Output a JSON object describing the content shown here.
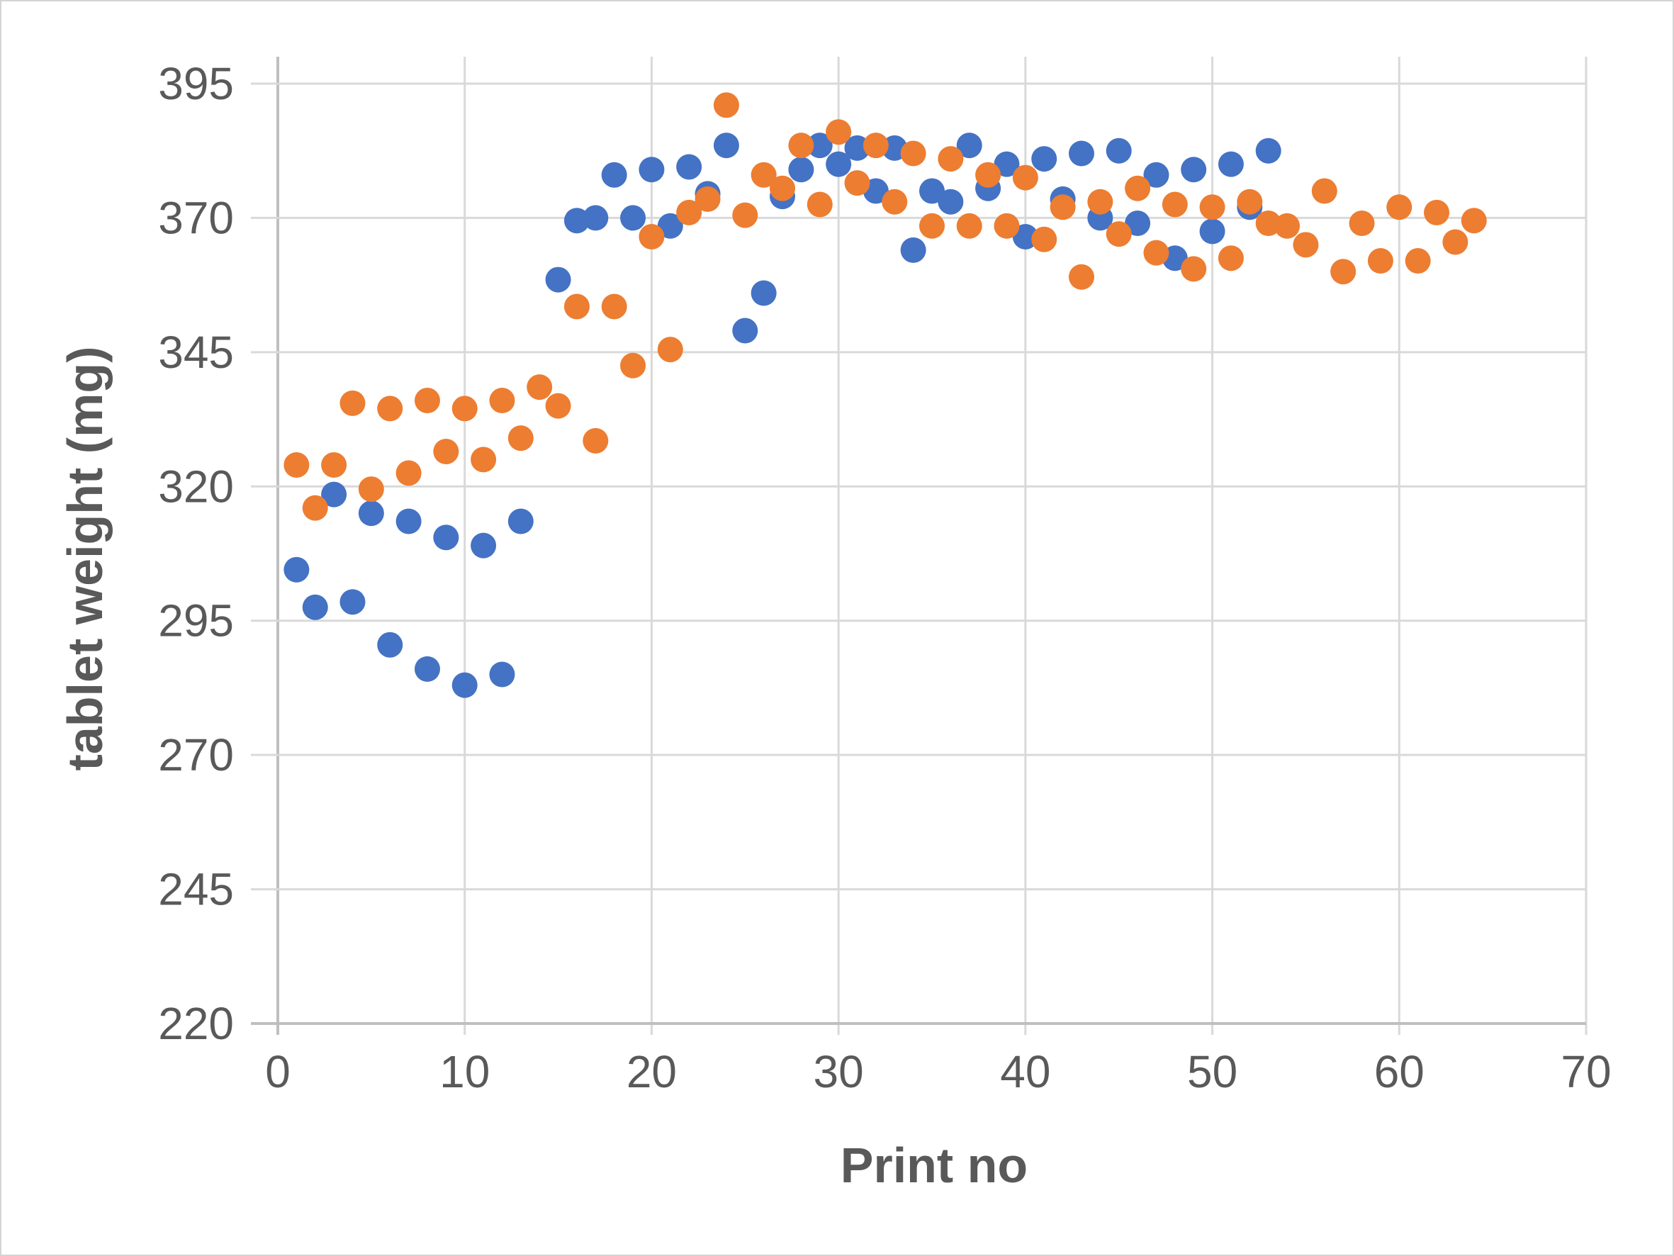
{
  "chart_data": {
    "type": "scatter",
    "title": "",
    "xlabel": "Print no",
    "ylabel": "tablet weight (mg)",
    "xlim": [
      0,
      70
    ],
    "ylim": [
      220,
      395
    ],
    "x_ticks": [
      "0",
      "10",
      "20",
      "30",
      "40",
      "50",
      "60",
      "70"
    ],
    "y_ticks": [
      "220",
      "245",
      "270",
      "295",
      "320",
      "345",
      "370",
      "395"
    ],
    "grid": true,
    "legend": "none",
    "colors": {
      "blue": "#4472C4",
      "orange": "#ED7D31",
      "grid": "#d9d9d9",
      "text": "#595959"
    },
    "series": [
      {
        "color": "#4472C4",
        "points": [
          [
            1,
            304.5
          ],
          [
            2,
            297.5
          ],
          [
            3,
            318.5
          ],
          [
            4,
            298.5
          ],
          [
            5,
            315.0
          ],
          [
            6,
            290.5
          ],
          [
            7,
            313.5
          ],
          [
            8,
            286.0
          ],
          [
            9,
            310.5
          ],
          [
            10,
            283.0
          ],
          [
            11,
            309.0
          ],
          [
            12,
            285.0
          ],
          [
            13,
            313.5
          ],
          [
            15,
            358.5
          ],
          [
            16,
            369.5
          ],
          [
            17,
            370.0
          ],
          [
            18,
            378.0
          ],
          [
            19,
            370.0
          ],
          [
            20,
            379.0
          ],
          [
            21,
            368.5
          ],
          [
            22,
            379.5
          ],
          [
            23,
            374.5
          ],
          [
            24,
            383.5
          ],
          [
            25,
            349.0
          ],
          [
            26,
            356.0
          ],
          [
            27,
            374.0
          ],
          [
            28,
            379.0
          ],
          [
            29,
            383.5
          ],
          [
            30,
            380.0
          ],
          [
            31,
            383.0
          ],
          [
            32,
            375.0
          ],
          [
            33,
            383.0
          ],
          [
            34,
            364.0
          ],
          [
            35,
            375.0
          ],
          [
            36,
            373.0
          ],
          [
            37,
            383.5
          ],
          [
            38,
            375.5
          ],
          [
            39,
            380.0
          ],
          [
            40,
            366.5
          ],
          [
            41,
            381.0
          ],
          [
            42,
            373.5
          ],
          [
            43,
            382.0
          ],
          [
            44,
            370.0
          ],
          [
            45,
            382.5
          ],
          [
            46,
            369.0
          ],
          [
            47,
            378.0
          ],
          [
            48,
            362.5
          ],
          [
            49,
            379.0
          ],
          [
            50,
            367.5
          ],
          [
            51,
            380.0
          ],
          [
            52,
            372.0
          ],
          [
            53,
            382.5
          ]
        ]
      },
      {
        "color": "#ED7D31",
        "points": [
          [
            1,
            324.0
          ],
          [
            2,
            316.0
          ],
          [
            3,
            324.0
          ],
          [
            4,
            335.5
          ],
          [
            5,
            319.5
          ],
          [
            6,
            334.5
          ],
          [
            7,
            322.5
          ],
          [
            8,
            336.0
          ],
          [
            9,
            326.5
          ],
          [
            10,
            334.5
          ],
          [
            11,
            325.0
          ],
          [
            12,
            336.0
          ],
          [
            13,
            329.0
          ],
          [
            14,
            338.5
          ],
          [
            15,
            335.0
          ],
          [
            16,
            353.5
          ],
          [
            17,
            328.5
          ],
          [
            18,
            353.5
          ],
          [
            19,
            342.5
          ],
          [
            20,
            366.5
          ],
          [
            21,
            345.5
          ],
          [
            22,
            371.0
          ],
          [
            23,
            373.5
          ],
          [
            24,
            391.0
          ],
          [
            25,
            370.5
          ],
          [
            26,
            378.0
          ],
          [
            27,
            375.5
          ],
          [
            28,
            383.5
          ],
          [
            29,
            372.5
          ],
          [
            30,
            386.0
          ],
          [
            31,
            376.5
          ],
          [
            32,
            383.5
          ],
          [
            33,
            373.0
          ],
          [
            34,
            382.0
          ],
          [
            35,
            368.5
          ],
          [
            36,
            381.0
          ],
          [
            37,
            368.5
          ],
          [
            38,
            378.0
          ],
          [
            39,
            368.5
          ],
          [
            40,
            377.5
          ],
          [
            41,
            366.0
          ],
          [
            42,
            372.0
          ],
          [
            43,
            359.0
          ],
          [
            44,
            373.0
          ],
          [
            45,
            367.0
          ],
          [
            46,
            375.5
          ],
          [
            47,
            363.5
          ],
          [
            48,
            372.5
          ],
          [
            49,
            360.5
          ],
          [
            50,
            372.0
          ],
          [
            51,
            362.5
          ],
          [
            52,
            373.0
          ],
          [
            53,
            369.0
          ],
          [
            54,
            368.5
          ],
          [
            55,
            365.0
          ],
          [
            56,
            375.0
          ],
          [
            57,
            360.0
          ],
          [
            58,
            369.0
          ],
          [
            59,
            362.0
          ],
          [
            60,
            372.0
          ],
          [
            61,
            362.0
          ],
          [
            62,
            371.0
          ],
          [
            63,
            365.5
          ],
          [
            64,
            369.5
          ]
        ]
      }
    ]
  }
}
